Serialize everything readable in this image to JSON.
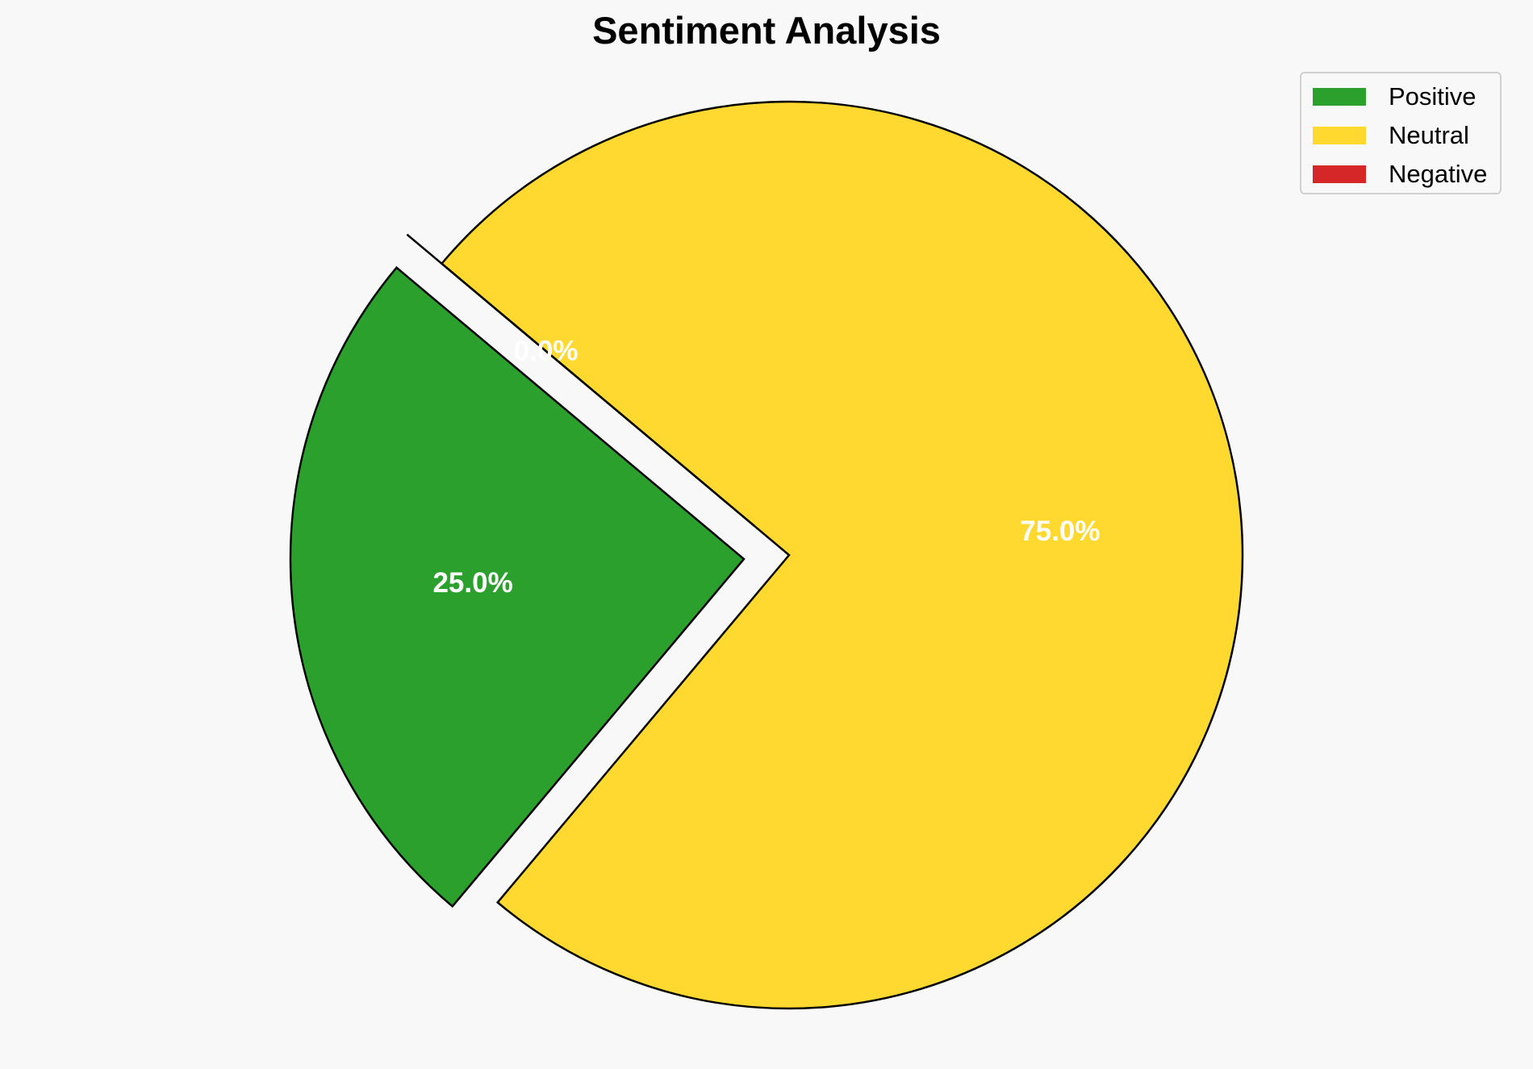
{
  "chart_data": {
    "type": "pie",
    "title": "Sentiment Analysis",
    "slices": [
      {
        "label": "Positive",
        "value": 25.0,
        "pct_label": "25.0%",
        "color": "#2ca02c",
        "exploded": true
      },
      {
        "label": "Neutral",
        "value": 75.0,
        "pct_label": "75.0%",
        "color": "#ffd92f",
        "exploded": false
      },
      {
        "label": "Negative",
        "value": 0.0,
        "pct_label": "0.0%",
        "color": "#d62728",
        "exploded": true
      }
    ],
    "start_angle_deg": 140,
    "direction": "counterclockwise",
    "legend_position": "top-right"
  }
}
